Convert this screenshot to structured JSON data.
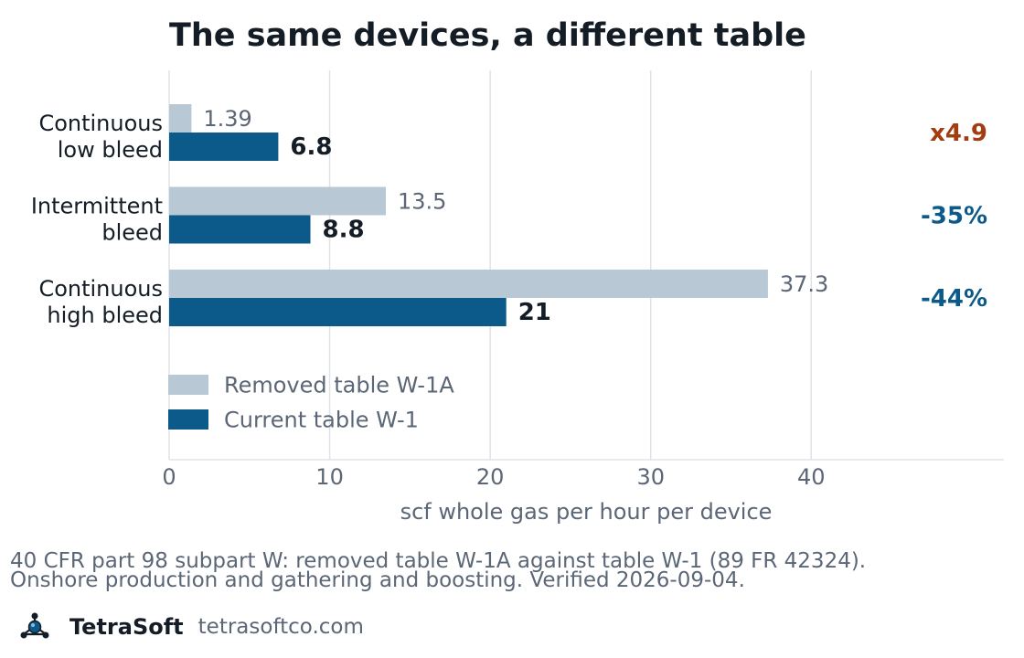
{
  "chart_data": {
    "type": "bar",
    "orientation": "horizontal",
    "title": "The same devices, a different table",
    "xlabel": "scf whole gas per hour per device",
    "ylabel": "",
    "xlim": [
      0,
      52
    ],
    "x_ticks": [
      0,
      10,
      20,
      30,
      40
    ],
    "grid": true,
    "legend_position": "lower-left",
    "categories": [
      [
        "Continuous",
        "low bleed"
      ],
      [
        "Intermittent",
        "bleed"
      ],
      [
        "Continuous",
        "high bleed"
      ]
    ],
    "series": [
      {
        "name": "Removed table W-1A",
        "values": [
          1.39,
          13.5,
          37.3
        ],
        "labels": [
          "1.39",
          "13.5",
          "37.3"
        ],
        "color": "#b8c8d4"
      },
      {
        "name": "Current table W-1",
        "values": [
          6.8,
          8.8,
          21
        ],
        "labels": [
          "6.8",
          "8.8",
          "21"
        ],
        "color": "#0b5a8a"
      }
    ],
    "annotations": [
      {
        "text": "x4.9",
        "color": "#a33d10"
      },
      {
        "text": "-35%",
        "color": "#0b5a8a"
      },
      {
        "text": "-44%",
        "color": "#0b5a8a"
      }
    ]
  },
  "footnote": {
    "line1": "40 CFR part 98 subpart W: removed table W-1A against table W-1 (89 FR 42324).",
    "line2": "Onshore production and gathering and boosting. Verified 2026-09-04."
  },
  "brand": {
    "name": "TetraSoft",
    "url": "tetrasoftco.com",
    "logo_icon": "molecule-logo-icon"
  },
  "colors": {
    "text_dark": "#141c26",
    "text_muted": "#5b6676",
    "grid": "#dfe3e8"
  }
}
